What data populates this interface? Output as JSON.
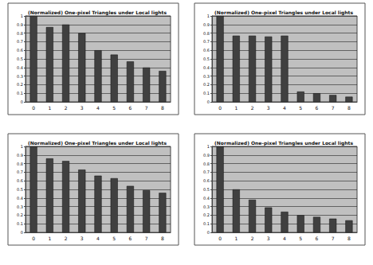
{
  "chart_data": [
    {
      "type": "bar",
      "title": "(Normalized) One-pixel Triangles under Local lights",
      "categories": [
        "0",
        "1",
        "2",
        "3",
        "4",
        "5",
        "6",
        "7",
        "8"
      ],
      "values": [
        1,
        0.87,
        0.9,
        0.8,
        0.6,
        0.55,
        0.47,
        0.4,
        0.36
      ],
      "color": "#404040",
      "ylim": [
        0,
        1
      ],
      "yticks": [
        0,
        0.1,
        0.2,
        0.3,
        0.4,
        0.5,
        0.6,
        0.7,
        0.8,
        0.9,
        1
      ],
      "grid": true
    },
    {
      "type": "bar",
      "title": "(Normalized) One-pixel Triangles under Local lights",
      "categories": [
        "0",
        "1",
        "2",
        "3",
        "4",
        "5",
        "6",
        "7",
        "8"
      ],
      "values": [
        1,
        0.77,
        0.77,
        0.76,
        0.77,
        0.12,
        0.1,
        0.08,
        0.06
      ],
      "color": "#404040",
      "ylim": [
        0,
        1
      ],
      "yticks": [
        0,
        0.1,
        0.2,
        0.3,
        0.4,
        0.5,
        0.6,
        0.7,
        0.8,
        0.9,
        1
      ],
      "grid": true
    },
    {
      "type": "bar",
      "title": "(Normalized) One-pixel Triangles under Local lights",
      "categories": [
        "0",
        "1",
        "2",
        "3",
        "4",
        "5",
        "6",
        "7",
        "8"
      ],
      "values": [
        1,
        0.86,
        0.83,
        0.73,
        0.66,
        0.63,
        0.54,
        0.49,
        0.46
      ],
      "color": "#404040",
      "ylim": [
        0,
        1
      ],
      "yticks": [
        0,
        0.1,
        0.2,
        0.3,
        0.4,
        0.5,
        0.6,
        0.7,
        0.8,
        0.9,
        1
      ],
      "grid": true
    },
    {
      "type": "bar",
      "title": "(Normalized) One-pixel Triangles under Local lights",
      "categories": [
        "0",
        "1",
        "2",
        "3",
        "4",
        "5",
        "6",
        "7",
        "8"
      ],
      "values": [
        1,
        0.5,
        0.38,
        0.29,
        0.24,
        0.2,
        0.18,
        0.16,
        0.14
      ],
      "color": "#404040",
      "ylim": [
        0,
        1
      ],
      "yticks": [
        0,
        0.1,
        0.2,
        0.3,
        0.4,
        0.5,
        0.6,
        0.7,
        0.8,
        0.9,
        1
      ],
      "grid": true
    }
  ]
}
